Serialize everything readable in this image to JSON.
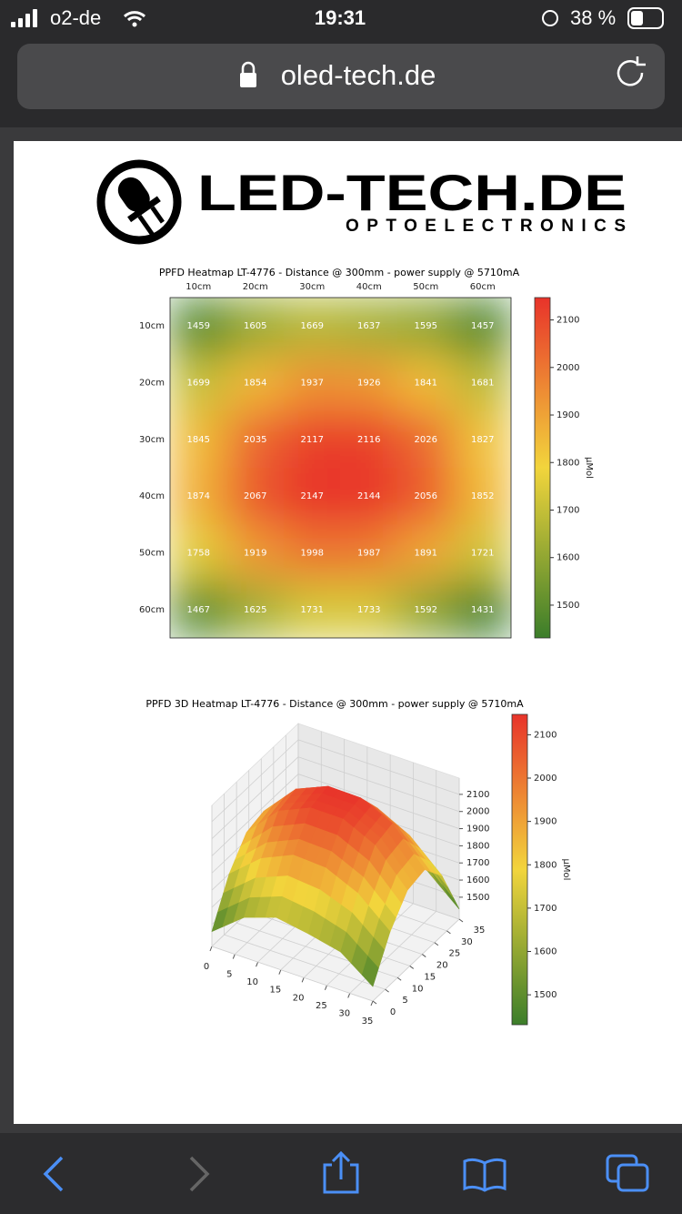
{
  "status_bar": {
    "carrier": "o2-de",
    "time": "19:31",
    "battery": "38 %"
  },
  "url": "oled-tech.de",
  "logo": {
    "title": "LED-TECH.DE",
    "subtitle": "OPTOELECTRONICS"
  },
  "chart_data": [
    {
      "type": "heatmap",
      "title": "PPFD Heatmap LT-4776 - Distance @ 300mm - power supply @ 5710mA",
      "x": [
        "10cm",
        "20cm",
        "30cm",
        "40cm",
        "50cm",
        "60cm"
      ],
      "y": [
        "10cm",
        "20cm",
        "30cm",
        "40cm",
        "50cm",
        "60cm"
      ],
      "values": [
        [
          1459,
          1605,
          1669,
          1637,
          1595,
          1457
        ],
        [
          1699,
          1854,
          1937,
          1926,
          1841,
          1681
        ],
        [
          1845,
          2035,
          2117,
          2116,
          2026,
          1827
        ],
        [
          1874,
          2067,
          2147,
          2144,
          2056,
          1852
        ],
        [
          1758,
          1919,
          1998,
          1987,
          1891,
          1721
        ],
        [
          1467,
          1625,
          1731,
          1733,
          1592,
          1431
        ]
      ],
      "colormap": [
        "#3b7d2a",
        "#f2d53c",
        "#e8332a"
      ],
      "clim": [
        1431,
        2147
      ],
      "cbar_ticks": [
        1500,
        1600,
        1700,
        1800,
        1900,
        2000,
        2100
      ],
      "colorbar_label": "µMol"
    },
    {
      "type": "surface3d",
      "title": "PPFD 3D Heatmap LT-4776 - Distance @ 300mm - power supply @ 5710mA",
      "values": [
        [
          1459,
          1605,
          1669,
          1637,
          1595,
          1457
        ],
        [
          1699,
          1854,
          1937,
          1926,
          1841,
          1681
        ],
        [
          1845,
          2035,
          2117,
          2116,
          2026,
          1827
        ],
        [
          1874,
          2067,
          2147,
          2144,
          2056,
          1852
        ],
        [
          1758,
          1919,
          1998,
          1987,
          1891,
          1721
        ],
        [
          1467,
          1625,
          1731,
          1733,
          1592,
          1431
        ]
      ],
      "xlim": [
        0,
        35
      ],
      "xticks": [
        0,
        5,
        10,
        15,
        20,
        25,
        30,
        35
      ],
      "ylim": [
        0,
        35
      ],
      "yticks": [
        0,
        5,
        10,
        15,
        20,
        25,
        30,
        35
      ],
      "zlim": [
        1372,
        2195
      ],
      "zticks": [
        1500,
        1600,
        1700,
        1800,
        1900,
        2000,
        2100
      ],
      "colormap": [
        "#3b7d2a",
        "#f2d53c",
        "#e8332a"
      ],
      "clim": [
        1431,
        2147
      ],
      "cbar_ticks": [
        1500,
        1600,
        1700,
        1800,
        1900,
        2000,
        2100
      ],
      "colorbar_label": "µMol",
      "grid": true
    }
  ]
}
